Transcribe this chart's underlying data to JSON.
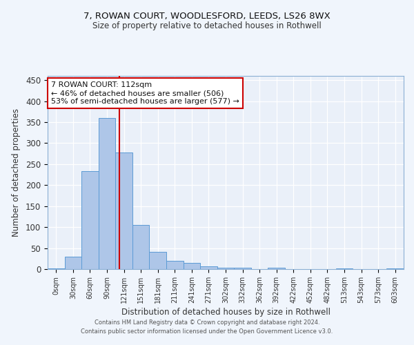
{
  "title1": "7, ROWAN COURT, WOODLESFORD, LEEDS, LS26 8WX",
  "title2": "Size of property relative to detached houses in Rothwell",
  "xlabel": "Distribution of detached houses by size in Rothwell",
  "ylabel": "Number of detached properties",
  "bar_labels": [
    "0sqm",
    "30sqm",
    "60sqm",
    "90sqm",
    "121sqm",
    "151sqm",
    "181sqm",
    "211sqm",
    "241sqm",
    "271sqm",
    "302sqm",
    "332sqm",
    "362sqm",
    "392sqm",
    "422sqm",
    "452sqm",
    "482sqm",
    "513sqm",
    "543sqm",
    "573sqm",
    "603sqm"
  ],
  "bar_values": [
    2,
    30,
    233,
    360,
    278,
    105,
    41,
    20,
    15,
    6,
    3,
    3,
    0,
    4,
    0,
    0,
    0,
    2,
    0,
    0,
    2
  ],
  "bar_color": "#aec6e8",
  "bar_edge_color": "#5b9bd5",
  "background_color": "#eaf0f9",
  "grid_color": "#ffffff",
  "red_line_x": 3.72,
  "annotation_text": "7 ROWAN COURT: 112sqm\n← 46% of detached houses are smaller (506)\n53% of semi-detached houses are larger (577) →",
  "annotation_box_color": "#ffffff",
  "annotation_box_edge_color": "#cc0000",
  "ylim": [
    0,
    460
  ],
  "yticks": [
    0,
    50,
    100,
    150,
    200,
    250,
    300,
    350,
    400,
    450
  ],
  "footer1": "Contains HM Land Registry data © Crown copyright and database right 2024.",
  "footer2": "Contains public sector information licensed under the Open Government Licence v3.0."
}
